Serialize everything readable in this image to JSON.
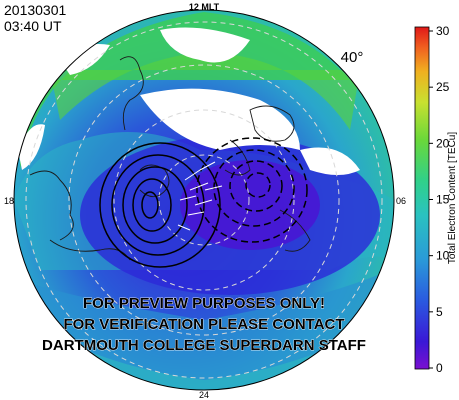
{
  "header": {
    "date": "20130301",
    "time": "03:40 UT"
  },
  "map": {
    "lat_label": "40°",
    "mlt_top": "12 MLT",
    "mlt_left": "18",
    "mlt_right": "06",
    "mlt_bottom": "24",
    "colors": {
      "low": "#2a1fd6",
      "mid": "#2aa9c8",
      "high": "#3cd06a",
      "very_high": "#e23c28"
    }
  },
  "watermark": {
    "line1": "FOR PREVIEW PURPOSES ONLY!",
    "line2": "FOR VERIFICATION PLEASE CONTACT",
    "line3": "DARTMOUTH COLLEGE SUPERDARN STAFF"
  },
  "colorbar": {
    "title": "Total Electron Content [TECu]",
    "ticks": [
      "30",
      "25",
      "20",
      "15",
      "10",
      "5",
      "0"
    ],
    "range": [
      0,
      30
    ]
  }
}
